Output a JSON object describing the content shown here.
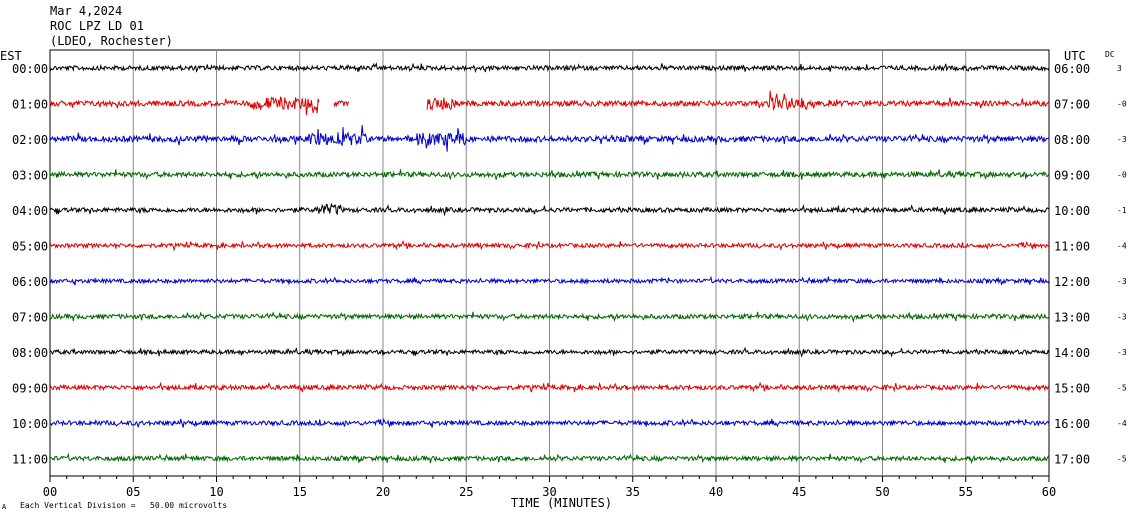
{
  "header": {
    "date": "Mar 4,2024",
    "station": "ROC LPZ LD 01",
    "location": "(LDEO, Rochester)"
  },
  "left_axis_title": "EST",
  "right_axis_title": "UTC",
  "dc_title": "DC",
  "footer": {
    "scale_note": "Each Vertical Division =   50.00 microvolts",
    "corner_mark": "A"
  },
  "colors": {
    "black": "#000000",
    "red": "#dd0000",
    "blue": "#0000cc",
    "green": "#006600",
    "grid": "#888888"
  },
  "chart_data": {
    "type": "line",
    "xlabel": "TIME (MINUTES)",
    "xlim": [
      0,
      60
    ],
    "x_ticks": [
      "00",
      "05",
      "10",
      "15",
      "20",
      "25",
      "30",
      "35",
      "40",
      "45",
      "50",
      "55",
      "60"
    ],
    "series": [
      {
        "est": "00:00",
        "utc": "06:00",
        "dc": "3",
        "color": "black",
        "amplitude": 1.0
      },
      {
        "est": "01:00",
        "utc": "07:00",
        "dc": "-0",
        "color": "red",
        "amplitude": 1.2,
        "gaps": [
          [
            16.2,
            17.0
          ],
          [
            18.0,
            22.6
          ]
        ]
      },
      {
        "est": "02:00",
        "utc": "08:00",
        "dc": "-3",
        "color": "blue",
        "amplitude": 1.3
      },
      {
        "est": "03:00",
        "utc": "09:00",
        "dc": "-0",
        "color": "green",
        "amplitude": 1.1
      },
      {
        "est": "04:00",
        "utc": "10:00",
        "dc": "-1",
        "color": "black",
        "amplitude": 1.0
      },
      {
        "est": "05:00",
        "utc": "11:00",
        "dc": "-4",
        "color": "red",
        "amplitude": 0.9
      },
      {
        "est": "06:00",
        "utc": "12:00",
        "dc": "-3",
        "color": "blue",
        "amplitude": 0.9
      },
      {
        "est": "07:00",
        "utc": "13:00",
        "dc": "-3",
        "color": "green",
        "amplitude": 1.0
      },
      {
        "est": "08:00",
        "utc": "14:00",
        "dc": "-3",
        "color": "black",
        "amplitude": 0.9
      },
      {
        "est": "09:00",
        "utc": "15:00",
        "dc": "-5",
        "color": "red",
        "amplitude": 1.0
      },
      {
        "est": "10:00",
        "utc": "16:00",
        "dc": "-4",
        "color": "blue",
        "amplitude": 1.0
      },
      {
        "est": "11:00",
        "utc": "17:00",
        "dc": "-5",
        "color": "green",
        "amplitude": 1.0
      }
    ]
  }
}
